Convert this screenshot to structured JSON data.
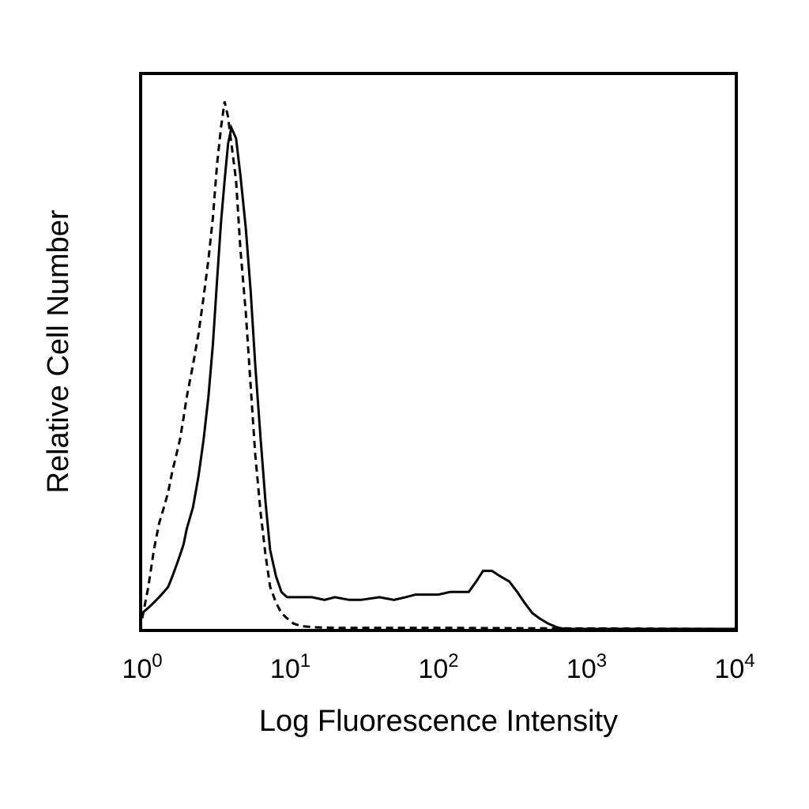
{
  "chart_data": {
    "type": "line",
    "title": "",
    "xlabel": "Log Fluorescence Intensity",
    "ylabel": "Relative Cell Number",
    "xscale": "log",
    "xlim": [
      1,
      10000
    ],
    "ylim": [
      0,
      105
    ],
    "grid": false,
    "legend": "none",
    "x_ticks": [
      {
        "value": 1,
        "base": "10",
        "exp": "0"
      },
      {
        "value": 10,
        "base": "10",
        "exp": "1"
      },
      {
        "value": 100,
        "base": "10",
        "exp": "2"
      },
      {
        "value": 1000,
        "base": "10",
        "exp": "3"
      },
      {
        "value": 10000,
        "base": "10",
        "exp": "4"
      }
    ],
    "series": [
      {
        "style": "dashed",
        "color": "#000000",
        "x": [
          1.0,
          1.1,
          1.2,
          1.3,
          1.4,
          1.5,
          1.6,
          1.7,
          1.8,
          1.9,
          2.0,
          2.2,
          2.4,
          2.6,
          2.8,
          3.0,
          3.2,
          3.4,
          3.6,
          3.8,
          4.0,
          4.3,
          4.6,
          5.0,
          5.4,
          5.8,
          6.3,
          6.8,
          7.3,
          8.0,
          8.7,
          9.5,
          10.5,
          12,
          15,
          20,
          50,
          100,
          500,
          10000
        ],
        "y": [
          2,
          8,
          15,
          20,
          23,
          26,
          30,
          33,
          36,
          40,
          44,
          50,
          56,
          63,
          70,
          78,
          88,
          95,
          100,
          97,
          92,
          85,
          72,
          60,
          46,
          33,
          22,
          14,
          8,
          5,
          3,
          2,
          1,
          0.5,
          0.3,
          0.2,
          0.2,
          0.2,
          0.1,
          0
        ]
      },
      {
        "style": "solid",
        "color": "#000000",
        "x": [
          1.0,
          1.1,
          1.2,
          1.3,
          1.4,
          1.5,
          1.6,
          1.7,
          1.8,
          1.9,
          2.0,
          2.2,
          2.4,
          2.6,
          2.8,
          3.0,
          3.2,
          3.4,
          3.6,
          3.8,
          4.0,
          4.3,
          4.6,
          5.0,
          5.4,
          5.8,
          6.3,
          6.8,
          7.3,
          8.0,
          8.7,
          9.5,
          10.5,
          12,
          14,
          17,
          20,
          25,
          30,
          40,
          50,
          60,
          70,
          80,
          100,
          120,
          140,
          160,
          180,
          200,
          230,
          260,
          300,
          340,
          380,
          430,
          480,
          550,
          630,
          700,
          10000
        ],
        "y": [
          3,
          4,
          5,
          6,
          7,
          8,
          10,
          12,
          14,
          16,
          19,
          23,
          29,
          36,
          44,
          54,
          66,
          77,
          85,
          92,
          95,
          93,
          86,
          76,
          64,
          50,
          36,
          24,
          15,
          10,
          7,
          6,
          6,
          6,
          6,
          5.5,
          6,
          5.5,
          5.5,
          6,
          5.5,
          6,
          6.5,
          6.5,
          6.5,
          7,
          7,
          7,
          9,
          11,
          11,
          10,
          9,
          7,
          5,
          3,
          2,
          1,
          0.3,
          0,
          0
        ]
      }
    ]
  }
}
